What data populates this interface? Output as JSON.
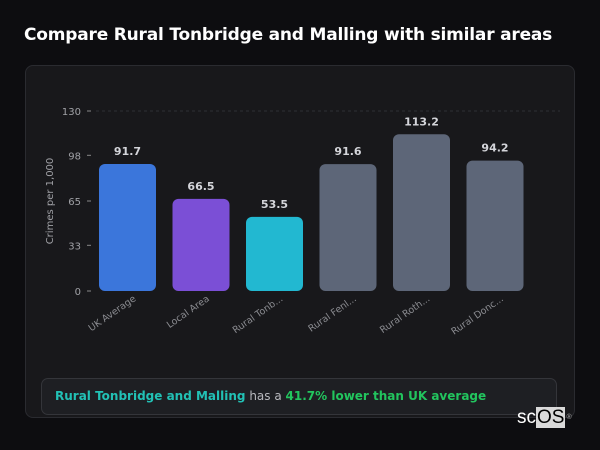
{
  "header": {
    "title": "Compare Rural Tonbridge and Malling with similar areas"
  },
  "chart_data": {
    "type": "bar",
    "title": "",
    "xlabel": "",
    "ylabel": "Crimes per 1,000",
    "ylim": [
      0,
      130
    ],
    "yticks": [
      "0",
      "33",
      "65",
      "98",
      "130"
    ],
    "grid": "dashed line at top tick only",
    "categories": [
      "UK Average",
      "Local Area",
      "Rural Tonb...",
      "Rural Fenl...",
      "Rural Roth...",
      "Rural Donc..."
    ],
    "values": [
      91.7,
      66.5,
      53.5,
      91.6,
      113.2,
      94.2
    ],
    "value_labels": [
      "91.7",
      "66.5",
      "53.5",
      "91.6",
      "113.2",
      "94.2"
    ],
    "colors": [
      "#3b76db",
      "#7b4fd6",
      "#22b8d1",
      "#5d6678",
      "#5d6678",
      "#5d6678"
    ]
  },
  "summary": {
    "area": "Rural Tonbridge and Malling",
    "middle": " has a ",
    "comparison": "41.7% lower than UK average"
  },
  "logo": {
    "text": "scOS"
  }
}
